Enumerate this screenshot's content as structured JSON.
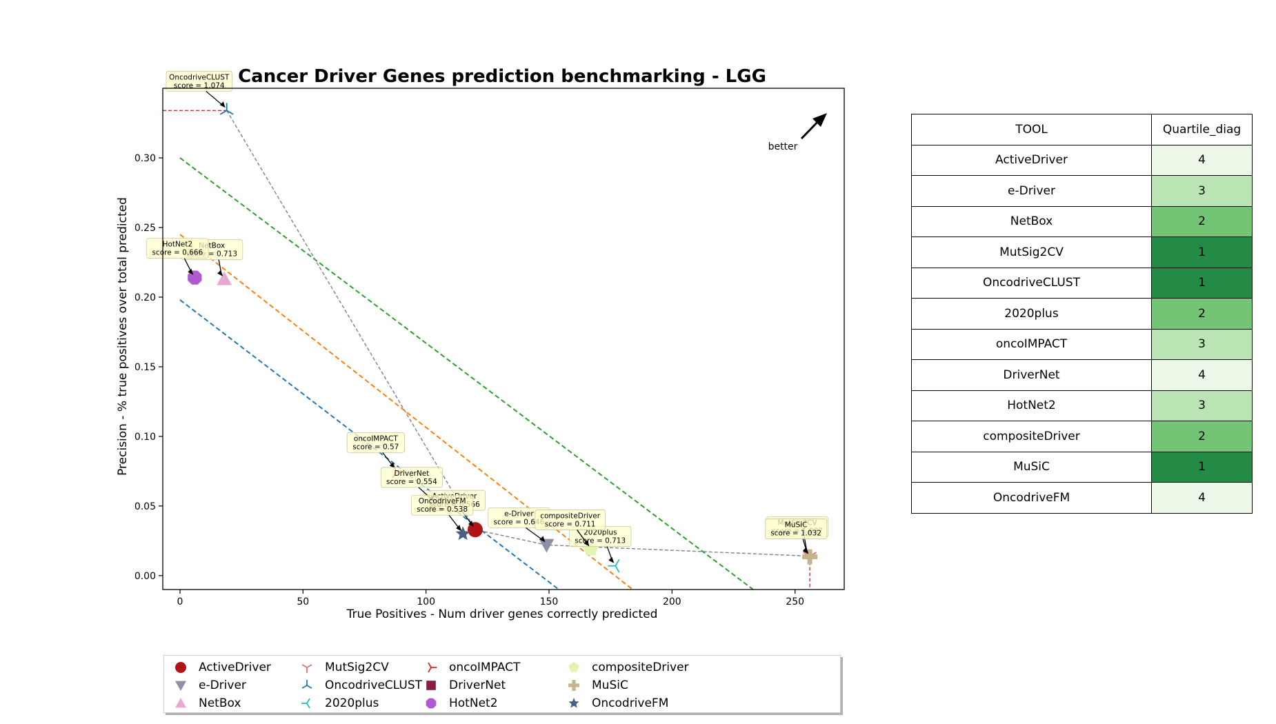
{
  "chart_data": {
    "type": "scatter",
    "title": "Cancer Driver Genes prediction benchmarking - LGG",
    "xlabel": "True Positives - Num driver genes correctly predicted",
    "ylabel": "Precision - % true positives over total predicted",
    "xlim": [
      -7,
      270
    ],
    "ylim": [
      -0.01,
      0.35
    ],
    "xticks": [
      0,
      50,
      100,
      150,
      200,
      250
    ],
    "yticks": [
      0.0,
      0.05,
      0.1,
      0.15,
      0.2,
      0.25,
      0.3
    ],
    "grid": false,
    "better_label": "better",
    "points": [
      {
        "name": "ActiveDriver",
        "x": 120,
        "y": 0.033,
        "color": "#b01515",
        "marker": "circle",
        "annotation_lines": [
          "ActiveDriver",
          "score = 0.566"
        ]
      },
      {
        "name": "e-Driver",
        "x": 149,
        "y": 0.022,
        "color": "#8f8fa8",
        "marker": "triangle-down",
        "annotation_lines": [
          "e-Driver",
          "score = 0.646"
        ]
      },
      {
        "name": "NetBox",
        "x": 18,
        "y": 0.213,
        "color": "#e8a8d0",
        "marker": "triangle-up",
        "annotation_lines": [
          "NetBox",
          "score = 0.713"
        ]
      },
      {
        "name": "MutSig2CV",
        "x": 256,
        "y": 0.014,
        "color": "#e07070",
        "marker": "tri-down",
        "annotation_lines": [
          "MutSig2CV",
          "score = 1.037"
        ]
      },
      {
        "name": "OncodriveCLUST",
        "x": 19,
        "y": 0.334,
        "color": "#1f77b4",
        "marker": "tri-up",
        "annotation_lines": [
          "OncodriveCLUST",
          "score = 1.074"
        ]
      },
      {
        "name": "2020plus",
        "x": 177,
        "y": 0.007,
        "color": "#20c0c8",
        "marker": "tri-left",
        "annotation_lines": [
          "2020plus",
          "score = 0.713"
        ]
      },
      {
        "name": "oncoIMPACT",
        "x": 88,
        "y": 0.075,
        "color": "#d62728",
        "marker": "tri-right",
        "annotation_lines": [
          "oncoIMPACT",
          "score = 0.57"
        ]
      },
      {
        "name": "DriverNet",
        "x": 104,
        "y": 0.051,
        "color": "#8b1a48",
        "marker": "square",
        "annotation_lines": [
          "DriverNet",
          "score = 0.554"
        ]
      },
      {
        "name": "HotNet2",
        "x": 6,
        "y": 0.214,
        "color": "#b05ad0",
        "marker": "octagon",
        "annotation_lines": [
          "HotNet2",
          "score = 0.666"
        ]
      },
      {
        "name": "compositeDriver",
        "x": 167,
        "y": 0.019,
        "color": "#e2f5b0",
        "marker": "pentagon",
        "annotation_lines": [
          "compositeDriver",
          "score = 0.711"
        ]
      },
      {
        "name": "MuSiC",
        "x": 256,
        "y": 0.0135,
        "color": "#c8b48c",
        "marker": "plus",
        "annotation_lines": [
          "MuSiC",
          "score = 1.032"
        ]
      },
      {
        "name": "OncodriveFM",
        "x": 115,
        "y": 0.03,
        "color": "#4a6080",
        "marker": "star",
        "annotation_lines": [
          "OncodriveFM",
          "score = 0.538"
        ]
      }
    ],
    "pareto_front": [
      [
        19,
        0.334
      ],
      [
        120,
        0.033
      ],
      [
        149,
        0.022
      ],
      [
        256,
        0.014
      ]
    ],
    "quartile_lines": [
      {
        "color": "#1f77b4",
        "points": [
          [
            0,
            0.198
          ],
          [
            154,
            -0.01
          ]
        ]
      },
      {
        "color": "#ff7f0e",
        "points": [
          [
            0,
            0.245
          ],
          [
            184,
            -0.01
          ]
        ]
      },
      {
        "color": "#2ca02c",
        "points": [
          [
            0,
            0.3
          ],
          [
            233,
            -0.01
          ]
        ]
      }
    ],
    "legend": {
      "placement": "bottom",
      "entries": [
        "ActiveDriver",
        "e-Driver",
        "NetBox",
        "MutSig2CV",
        "OncodriveCLUST",
        "2020plus",
        "oncoIMPACT",
        "DriverNet",
        "HotNet2",
        "compositeDriver",
        "MuSiC",
        "OncodriveFM"
      ]
    }
  },
  "table": {
    "header": [
      "TOOL",
      "Quartile_diag"
    ],
    "rows": [
      {
        "tool": "ActiveDriver",
        "quartile": "4"
      },
      {
        "tool": "e-Driver",
        "quartile": "3"
      },
      {
        "tool": "NetBox",
        "quartile": "2"
      },
      {
        "tool": "MutSig2CV",
        "quartile": "1"
      },
      {
        "tool": "OncodriveCLUST",
        "quartile": "1"
      },
      {
        "tool": "2020plus",
        "quartile": "2"
      },
      {
        "tool": "oncoIMPACT",
        "quartile": "3"
      },
      {
        "tool": "DriverNet",
        "quartile": "4"
      },
      {
        "tool": "HotNet2",
        "quartile": "3"
      },
      {
        "tool": "compositeDriver",
        "quartile": "2"
      },
      {
        "tool": "MuSiC",
        "quartile": "1"
      },
      {
        "tool": "OncodriveFM",
        "quartile": "4"
      }
    ],
    "quartile_colors": {
      "1": "#238b45",
      "2": "#74c476",
      "3": "#bae4b3",
      "4": "#edf8e9"
    }
  }
}
